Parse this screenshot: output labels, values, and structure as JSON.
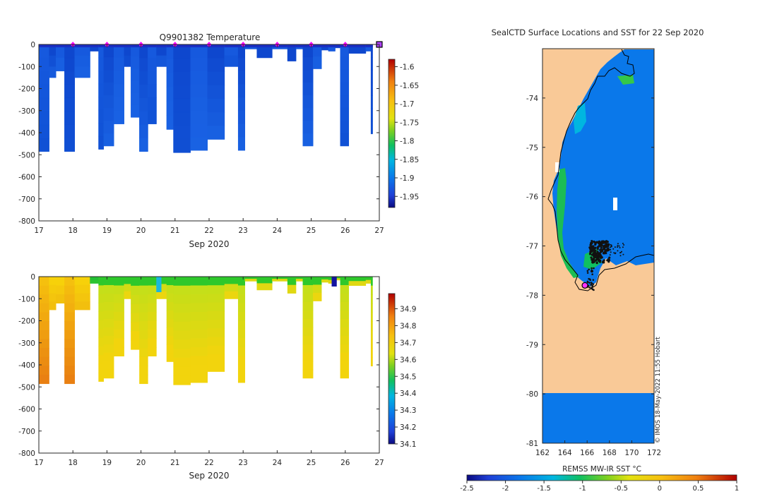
{
  "colors": {
    "land": "#f9c997",
    "ocean": "#0a78ea",
    "deep_blue": "#0c4ad6",
    "deep_blue_2": "#1460dd",
    "marker": "#ff00ff",
    "axis": "#262626"
  },
  "chart_data": [
    {
      "type": "heatmap",
      "name": "temperature-section",
      "title": "Q9901382  Temperature",
      "xlabel": "Sep 2020",
      "ylabel": "",
      "xlim": [
        17,
        27
      ],
      "ylim": [
        -800,
        0
      ],
      "x_ticks": [
        "17",
        "18",
        "19",
        "20",
        "21",
        "22",
        "23",
        "24",
        "25",
        "26",
        "27"
      ],
      "y_ticks": [
        "0",
        "-100",
        "-200",
        "-300",
        "-400",
        "-500",
        "-600",
        "-700",
        "-800"
      ],
      "profile_markers_day": [
        18,
        19,
        20,
        21,
        22,
        23,
        24,
        25,
        26
      ],
      "profiles": [
        {
          "start": 17.0,
          "end": 17.3,
          "depth": 485
        },
        {
          "start": 17.3,
          "end": 17.5,
          "depth": 150
        },
        {
          "start": 17.5,
          "end": 17.75,
          "depth": 120
        },
        {
          "start": 17.75,
          "end": 18.05,
          "depth": 485
        },
        {
          "start": 18.05,
          "end": 18.5,
          "depth": 150
        },
        {
          "start": 18.5,
          "end": 18.75,
          "depth": 30
        },
        {
          "start": 18.75,
          "end": 18.9,
          "depth": 475
        },
        {
          "start": 18.9,
          "end": 19.2,
          "depth": 460
        },
        {
          "start": 19.2,
          "end": 19.5,
          "depth": 360
        },
        {
          "start": 19.5,
          "end": 19.7,
          "depth": 100
        },
        {
          "start": 19.7,
          "end": 19.95,
          "depth": 330
        },
        {
          "start": 19.95,
          "end": 20.2,
          "depth": 485
        },
        {
          "start": 20.2,
          "end": 20.45,
          "depth": 360
        },
        {
          "start": 20.45,
          "end": 20.75,
          "depth": 100
        },
        {
          "start": 20.75,
          "end": 20.95,
          "depth": 385
        },
        {
          "start": 20.95,
          "end": 21.45,
          "depth": 490
        },
        {
          "start": 21.45,
          "end": 21.95,
          "depth": 480
        },
        {
          "start": 21.95,
          "end": 22.45,
          "depth": 430
        },
        {
          "start": 22.45,
          "end": 22.85,
          "depth": 100
        },
        {
          "start": 22.85,
          "end": 23.05,
          "depth": 480
        },
        {
          "start": 23.05,
          "end": 23.4,
          "depth": 20
        },
        {
          "start": 23.4,
          "end": 23.85,
          "depth": 60
        },
        {
          "start": 23.85,
          "end": 24.3,
          "depth": 20
        },
        {
          "start": 24.3,
          "end": 24.55,
          "depth": 75
        },
        {
          "start": 24.55,
          "end": 24.75,
          "depth": 20
        },
        {
          "start": 24.75,
          "end": 25.05,
          "depth": 460
        },
        {
          "start": 25.05,
          "end": 25.3,
          "depth": 110
        },
        {
          "start": 25.3,
          "end": 25.5,
          "depth": 25
        },
        {
          "start": 25.5,
          "end": 25.7,
          "depth": 30
        },
        {
          "start": 25.7,
          "end": 25.85,
          "depth": 15
        },
        {
          "start": 25.85,
          "end": 26.1,
          "depth": 460
        },
        {
          "start": 26.1,
          "end": 26.6,
          "depth": 40
        },
        {
          "start": 26.6,
          "end": 26.75,
          "depth": 30
        },
        {
          "start": 26.75,
          "end": 26.8,
          "depth": 405
        }
      ],
      "colorbar": {
        "min": -1.98,
        "max": -1.58,
        "ticks": [
          "-1.6",
          "-1.65",
          "-1.7",
          "-1.75",
          "-1.8",
          "-1.85",
          "-1.9",
          "-1.95"
        ],
        "tick_values": [
          -1.6,
          -1.65,
          -1.7,
          -1.75,
          -1.8,
          -1.85,
          -1.9,
          -1.95
        ]
      }
    },
    {
      "type": "heatmap",
      "name": "salinity-section",
      "title": "",
      "xlabel": "Sep 2020",
      "ylabel": "",
      "xlim": [
        17,
        27
      ],
      "ylim": [
        -800,
        0
      ],
      "x_ticks": [
        "17",
        "18",
        "19",
        "20",
        "21",
        "22",
        "23",
        "24",
        "25",
        "26",
        "27"
      ],
      "y_ticks": [
        "0",
        "-100",
        "-200",
        "-300",
        "-400",
        "-500",
        "-600",
        "-700",
        "-800"
      ],
      "colorbar": {
        "min": 34.1,
        "max": 34.99,
        "ticks": [
          "34.9",
          "34.8",
          "34.7",
          "34.6",
          "34.5",
          "34.4",
          "34.3",
          "34.2",
          "34.1"
        ],
        "tick_values": [
          34.9,
          34.8,
          34.7,
          34.6,
          34.5,
          34.4,
          34.3,
          34.2,
          34.1
        ]
      }
    },
    {
      "type": "heatmap",
      "name": "sst-map",
      "title": "SealCTD Surface Locations and SST for 22 Sep 2020",
      "xlabel": "",
      "ylabel": "",
      "xlim": [
        162,
        172
      ],
      "ylim": [
        -81,
        -73
      ],
      "x_ticks": [
        "162",
        "164",
        "166",
        "168",
        "170",
        "172"
      ],
      "y_ticks": [
        "-74",
        "-75",
        "-76",
        "-77",
        "-78",
        "-79",
        "-80",
        "-81"
      ],
      "credit": "© IMOS 18-May-2022 11:55 Hobart",
      "colorbar": {
        "label": "REMSS MW-IR SST °C",
        "min": -2.5,
        "max": 1,
        "ticks": [
          "-2.5",
          "-2",
          "-1.5",
          "-1",
          "-0.5",
          "0",
          "0.5",
          "1"
        ],
        "tick_values": [
          -2.5,
          -2,
          -1.5,
          -1,
          -0.5,
          0,
          0.5,
          1
        ]
      },
      "last_position": {
        "lon": 165.8,
        "lat": -77.8
      }
    }
  ]
}
